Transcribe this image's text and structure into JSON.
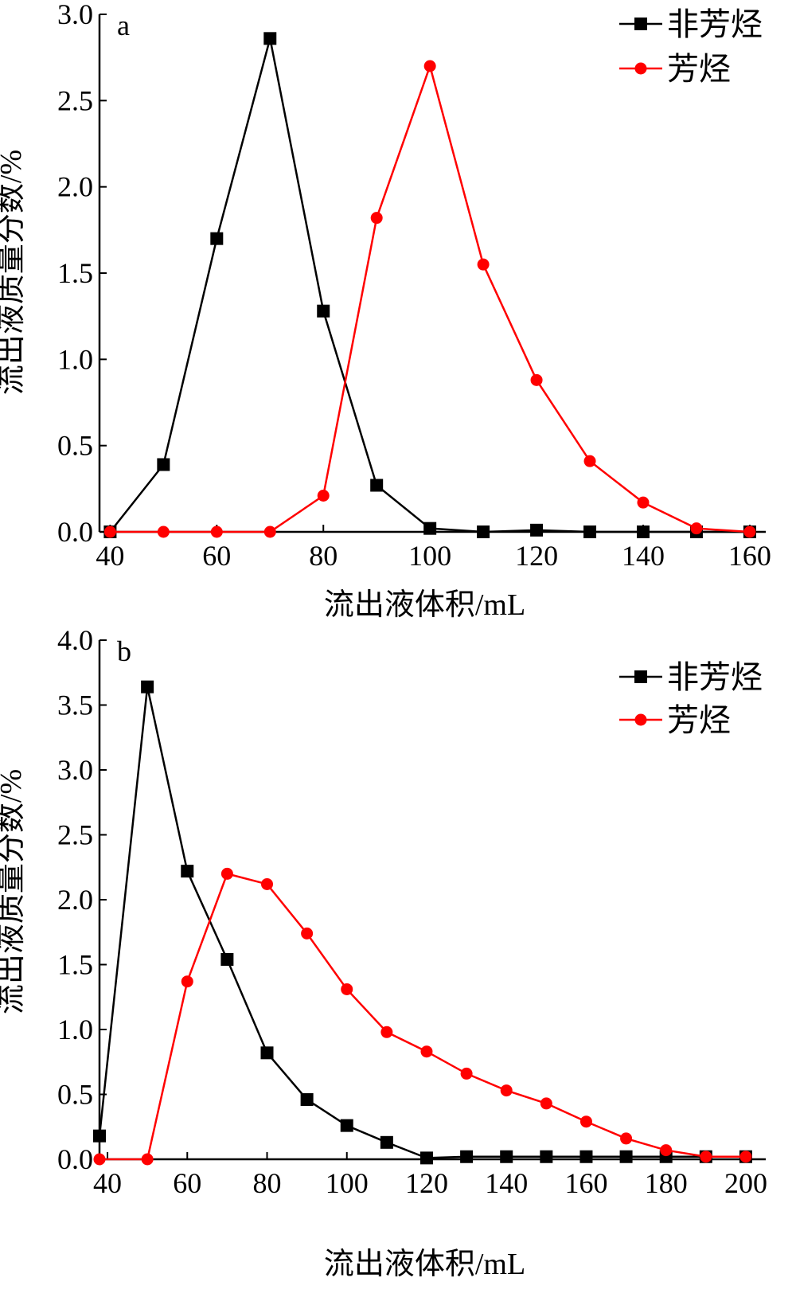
{
  "figure": {
    "chart_data": [
      {
        "type": "line",
        "panel_label": "a",
        "xlabel": "流出液体积/mL",
        "ylabel": "流出液质量分数/%",
        "xlim": [
          38,
          163
        ],
        "ylim": [
          0,
          3.0
        ],
        "xticks": [
          40,
          60,
          80,
          100,
          120,
          140,
          160
        ],
        "yticks": [
          0.0,
          0.5,
          1.0,
          1.5,
          2.0,
          2.5,
          3.0
        ],
        "ytick_labels": [
          "0.0",
          "0.5",
          "1.0",
          "1.5",
          "2.0",
          "2.5",
          "3.0"
        ],
        "grid": false,
        "legend_position": "top-right",
        "series": [
          {
            "name": "非芳烃",
            "marker": "square",
            "color": "#000000",
            "x": [
              40,
              50,
              60,
              70,
              80,
              90,
              100,
              110,
              120,
              130,
              140,
              150,
              160
            ],
            "y": [
              0.0,
              0.39,
              1.7,
              2.86,
              1.28,
              0.27,
              0.02,
              0.0,
              0.01,
              0.0,
              0.0,
              0.0,
              0.0
            ]
          },
          {
            "name": "芳烃",
            "marker": "circle",
            "color": "#ff0000",
            "x": [
              40,
              50,
              60,
              70,
              80,
              90,
              100,
              110,
              120,
              130,
              140,
              150,
              160
            ],
            "y": [
              0.0,
              0.0,
              0.0,
              0.0,
              0.21,
              1.82,
              2.7,
              1.55,
              0.88,
              0.41,
              0.17,
              0.02,
              0.0
            ]
          }
        ]
      },
      {
        "type": "line",
        "panel_label": "b",
        "xlabel": "流出液体积/mL",
        "ylabel": "流出液质量分数/%",
        "xlim": [
          38,
          205
        ],
        "ylim": [
          0,
          4.0
        ],
        "xticks": [
          40,
          60,
          80,
          100,
          120,
          140,
          160,
          180,
          200
        ],
        "yticks": [
          0.0,
          0.5,
          1.0,
          1.5,
          2.0,
          2.5,
          3.0,
          3.5,
          4.0
        ],
        "ytick_labels": [
          "0.0",
          "0.5",
          "1.0",
          "1.5",
          "2.0",
          "2.5",
          "3.0",
          "3.5",
          "4.0"
        ],
        "grid": false,
        "legend_position": "top-right",
        "series": [
          {
            "name": "非芳烃",
            "marker": "square",
            "color": "#000000",
            "x": [
              38,
              50,
              60,
              70,
              80,
              90,
              100,
              110,
              120,
              130,
              140,
              150,
              160,
              170,
              180,
              190,
              200
            ],
            "y": [
              0.18,
              3.64,
              2.22,
              1.54,
              0.82,
              0.46,
              0.26,
              0.13,
              0.01,
              0.02,
              0.02,
              0.02,
              0.02,
              0.02,
              0.02,
              0.02,
              0.02
            ]
          },
          {
            "name": "芳烃",
            "marker": "circle",
            "color": "#ff0000",
            "x": [
              38,
              50,
              60,
              70,
              80,
              90,
              100,
              110,
              120,
              130,
              140,
              150,
              160,
              170,
              180,
              190,
              200
            ],
            "y": [
              0.0,
              0.0,
              1.37,
              2.2,
              2.12,
              1.74,
              1.31,
              0.98,
              0.83,
              0.66,
              0.53,
              0.43,
              0.29,
              0.16,
              0.07,
              0.02,
              0.02
            ]
          }
        ]
      }
    ]
  }
}
